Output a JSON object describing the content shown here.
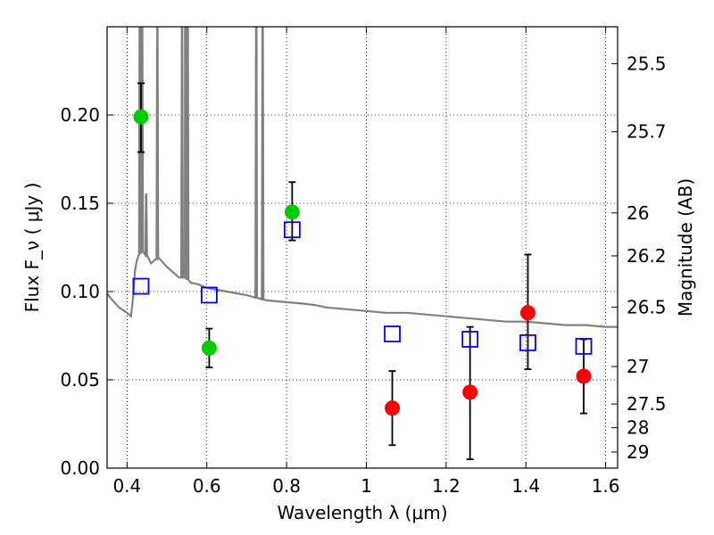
{
  "chart_data": {
    "type": "scatter",
    "xlabel": "Wavelength  λ (μm)",
    "ylabel": "Flux  F_ν  ( μJy )",
    "ylabel_right": "Magnitude (AB)",
    "xlim": [
      0.35,
      1.63
    ],
    "ylim": [
      0.0,
      0.25
    ],
    "grid": true,
    "x_ticks": [
      0.4,
      0.6,
      0.8,
      1.0,
      1.2,
      1.4,
      1.6
    ],
    "x_tick_labels": [
      "0.4",
      "0.6",
      "0.8",
      "1",
      "1.2",
      "1.4",
      "1.6"
    ],
    "y_ticks": [
      0.0,
      0.05,
      0.1,
      0.15,
      0.2
    ],
    "y_tick_labels": [
      "0.00",
      "0.05",
      "0.10",
      "0.15",
      "0.20"
    ],
    "right_axis_ticks": [
      {
        "label": "25.5",
        "mag": 25.5
      },
      {
        "label": "25.7",
        "mag": 25.7
      },
      {
        "label": "26",
        "mag": 26.0
      },
      {
        "label": "26.2",
        "mag": 26.2
      },
      {
        "label": "26.5",
        "mag": 26.5
      },
      {
        "label": "27",
        "mag": 27.0
      },
      {
        "label": "27.5",
        "mag": 27.5
      },
      {
        "label": "28",
        "mag": 28.0
      },
      {
        "label": "29",
        "mag": 29.0
      }
    ],
    "series": [
      {
        "color": "#00cc00",
        "marker": "circle",
        "points": [
          {
            "x": 0.435,
            "y": 0.199,
            "err_low": 0.179,
            "err_high": 0.218
          },
          {
            "x": 0.606,
            "y": 0.068,
            "err_low": 0.057,
            "err_high": 0.079
          },
          {
            "x": 0.814,
            "y": 0.145,
            "err_low": 0.129,
            "err_high": 0.162
          }
        ]
      },
      {
        "color": "#ff0000",
        "marker": "circle",
        "points": [
          {
            "x": 1.065,
            "y": 0.034,
            "err_low": 0.013,
            "err_high": 0.055
          },
          {
            "x": 1.26,
            "y": 0.043,
            "err_low": 0.005,
            "err_high": 0.08
          },
          {
            "x": 1.405,
            "y": 0.088,
            "err_low": 0.056,
            "err_high": 0.121
          },
          {
            "x": 1.545,
            "y": 0.052,
            "err_low": 0.031,
            "err_high": 0.073
          }
        ]
      },
      {
        "color": "#0000ff",
        "marker": "open-square",
        "points": [
          {
            "x": 0.435,
            "y": 0.103
          },
          {
            "x": 0.606,
            "y": 0.098
          },
          {
            "x": 0.814,
            "y": 0.135
          },
          {
            "x": 1.065,
            "y": 0.076
          },
          {
            "x": 1.26,
            "y": 0.073
          },
          {
            "x": 1.405,
            "y": 0.071
          },
          {
            "x": 1.545,
            "y": 0.069
          }
        ]
      }
    ],
    "template_spectrum": {
      "color": "#808080",
      "x": [
        0.35,
        0.36,
        0.38,
        0.4,
        0.41,
        0.415,
        0.42,
        0.425,
        0.43,
        0.44,
        0.45,
        0.46,
        0.47,
        0.48,
        0.5,
        0.52,
        0.53,
        0.545,
        0.56,
        0.58,
        0.6,
        0.65,
        0.7,
        0.75,
        0.8,
        0.85,
        0.88,
        0.9,
        0.95,
        1.0,
        1.05,
        1.1,
        1.15,
        1.2,
        1.25,
        1.3,
        1.35,
        1.4,
        1.45,
        1.5,
        1.55,
        1.6,
        1.63
      ],
      "y": [
        0.099,
        0.096,
        0.091,
        0.088,
        0.086,
        0.096,
        0.112,
        0.118,
        0.121,
        0.123,
        0.12,
        0.116,
        0.118,
        0.119,
        0.114,
        0.11,
        0.108,
        0.108,
        0.105,
        0.104,
        0.102,
        0.1,
        0.098,
        0.095,
        0.094,
        0.093,
        0.092,
        0.091,
        0.09,
        0.089,
        0.088,
        0.088,
        0.087,
        0.086,
        0.085,
        0.084,
        0.083,
        0.083,
        0.082,
        0.081,
        0.081,
        0.08,
        0.08
      ],
      "emission_lines": [
        {
          "x": 0.432,
          "peak": 0.26
        },
        {
          "x": 0.438,
          "peak": 0.26
        },
        {
          "x": 0.448,
          "peak": 0.155
        },
        {
          "x": 0.476,
          "peak": 0.26
        },
        {
          "x": 0.538,
          "peak": 0.26
        },
        {
          "x": 0.546,
          "peak": 0.26
        },
        {
          "x": 0.552,
          "peak": 0.26
        },
        {
          "x": 0.724,
          "peak": 0.26
        },
        {
          "x": 0.74,
          "peak": 0.26
        }
      ]
    }
  }
}
